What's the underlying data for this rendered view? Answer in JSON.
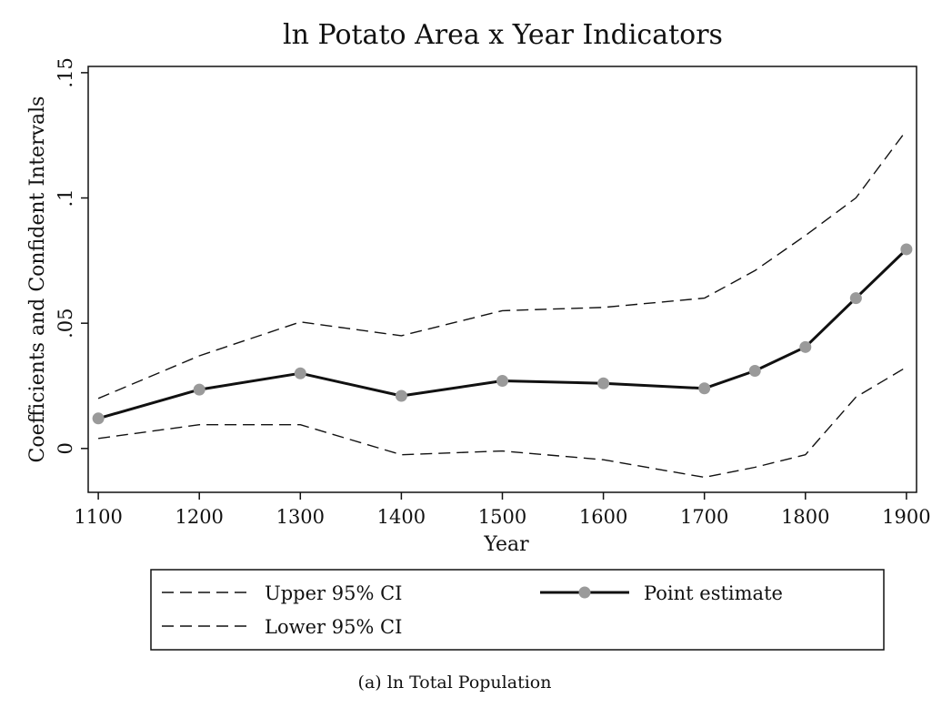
{
  "chart_data": {
    "type": "line",
    "title": "ln Potato Area x Year Indicators",
    "xlabel": "Year",
    "ylabel": "Coefficients and Confident Intervals",
    "caption": "(a) ln Total Population",
    "x": [
      1100,
      1200,
      1300,
      1400,
      1500,
      1600,
      1700,
      1750,
      1800,
      1850,
      1900
    ],
    "x_ticks": [
      1100,
      1200,
      1300,
      1400,
      1500,
      1600,
      1700,
      1800,
      1900
    ],
    "x_tick_labels": [
      "1100",
      "1200",
      "1300",
      "1400",
      "1500",
      "1600",
      "1700",
      "1800",
      "1900"
    ],
    "y_ticks": [
      0,
      0.05,
      0.1,
      0.15
    ],
    "y_tick_labels": [
      "0",
      ".05",
      ".1",
      ".15"
    ],
    "xlim": [
      1090,
      1910
    ],
    "ylim": [
      -0.0175,
      0.1525
    ],
    "grid": false,
    "legend_position": "bottom",
    "series": [
      {
        "key": "upper",
        "name": "Upper 95% CI",
        "style": "dashed",
        "color": "#111111",
        "values": [
          0.02,
          0.037,
          0.0505,
          0.045,
          0.055,
          0.0563,
          0.06,
          0.071,
          0.085,
          0.1,
          0.127
        ]
      },
      {
        "key": "lower",
        "name": "Lower 95% CI",
        "style": "dashed",
        "color": "#111111",
        "values": [
          0.004,
          0.0095,
          0.0095,
          -0.0025,
          -0.001,
          -0.0045,
          -0.0115,
          -0.0075,
          -0.0025,
          0.0205,
          0.0325
        ]
      },
      {
        "key": "point",
        "name": "Point estimate",
        "style": "solid-markers",
        "color": "#111111",
        "marker_color": "#9a9a9a",
        "values": [
          0.012,
          0.0235,
          0.03,
          0.021,
          0.027,
          0.026,
          0.024,
          0.031,
          0.0405,
          0.06,
          0.0795
        ]
      }
    ]
  }
}
